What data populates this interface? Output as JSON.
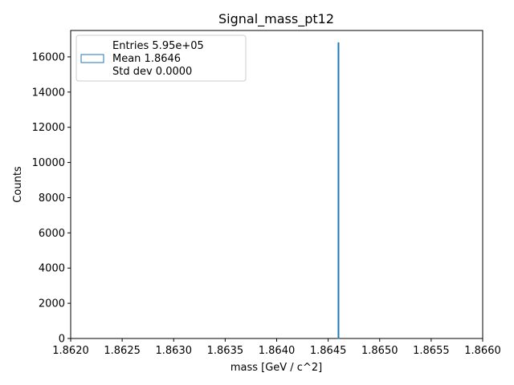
{
  "chart_data": {
    "type": "bar",
    "title": "Signal_mass_pt12",
    "xlabel": "mass [GeV / c^2]",
    "ylabel": "Counts",
    "xlim": [
      1.862,
      1.866
    ],
    "ylim": [
      0,
      17500
    ],
    "x_ticks": [
      "1.8620",
      "1.8625",
      "1.8630",
      "1.8635",
      "1.8640",
      "1.8645",
      "1.8650",
      "1.8655",
      "1.8660"
    ],
    "x_tick_values": [
      1.862,
      1.8625,
      1.863,
      1.8635,
      1.864,
      1.8645,
      1.865,
      1.8655,
      1.866
    ],
    "y_ticks": [
      "0",
      "2000",
      "4000",
      "6000",
      "8000",
      "10000",
      "12000",
      "14000",
      "16000"
    ],
    "y_tick_values": [
      0,
      2000,
      4000,
      6000,
      8000,
      10000,
      12000,
      14000,
      16000
    ],
    "bins": [
      {
        "x": 1.8646,
        "value": 16800
      }
    ],
    "grid": false,
    "legend_position": "top-left",
    "legend": {
      "entries": "Entries 5.95e+05",
      "mean": "Mean 1.8646",
      "std": "Std dev 0.0000"
    },
    "colors": {
      "histogram": "#1f77b4"
    }
  }
}
